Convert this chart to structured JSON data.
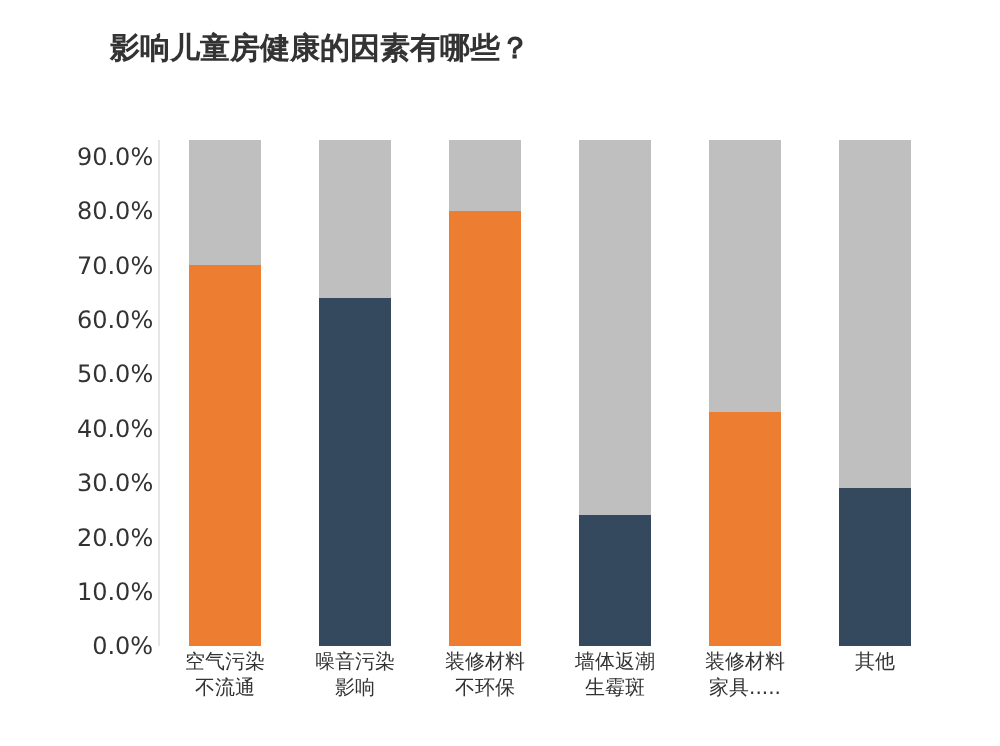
{
  "chart_data": {
    "type": "bar",
    "title": "影响儿童房健康的因素有哪些？",
    "stacked": true,
    "categories": [
      "空气污染不流通",
      "噪音污染影响",
      "装修材料不环保",
      "墙体返潮生霉斑",
      "装修材料家具.....",
      "其他"
    ],
    "series": [
      {
        "colors": [
          "#ed7d31",
          "#34495e",
          "#ed7d31",
          "#34495e",
          "#ed7d31",
          "#34495e"
        ],
        "values": [
          70,
          64,
          80,
          24,
          43,
          29
        ]
      },
      {
        "color": "#bfbfbf",
        "values": [
          23,
          29,
          13,
          69,
          50,
          64
        ]
      }
    ],
    "ylim": [
      0,
      93
    ],
    "yticks": [
      {
        "value": 0,
        "label": "0.0%"
      },
      {
        "value": 10,
        "label": "10.0%"
      },
      {
        "value": 20,
        "label": "20.0%"
      },
      {
        "value": 30,
        "label": "30.0%"
      },
      {
        "value": 40,
        "label": "40.0%"
      },
      {
        "value": 50,
        "label": "50.0%"
      },
      {
        "value": 60,
        "label": "60.0%"
      },
      {
        "value": 70,
        "label": "70.0%"
      },
      {
        "value": 80,
        "label": "80.0%"
      },
      {
        "value": 90,
        "label": "90.0%"
      }
    ]
  }
}
